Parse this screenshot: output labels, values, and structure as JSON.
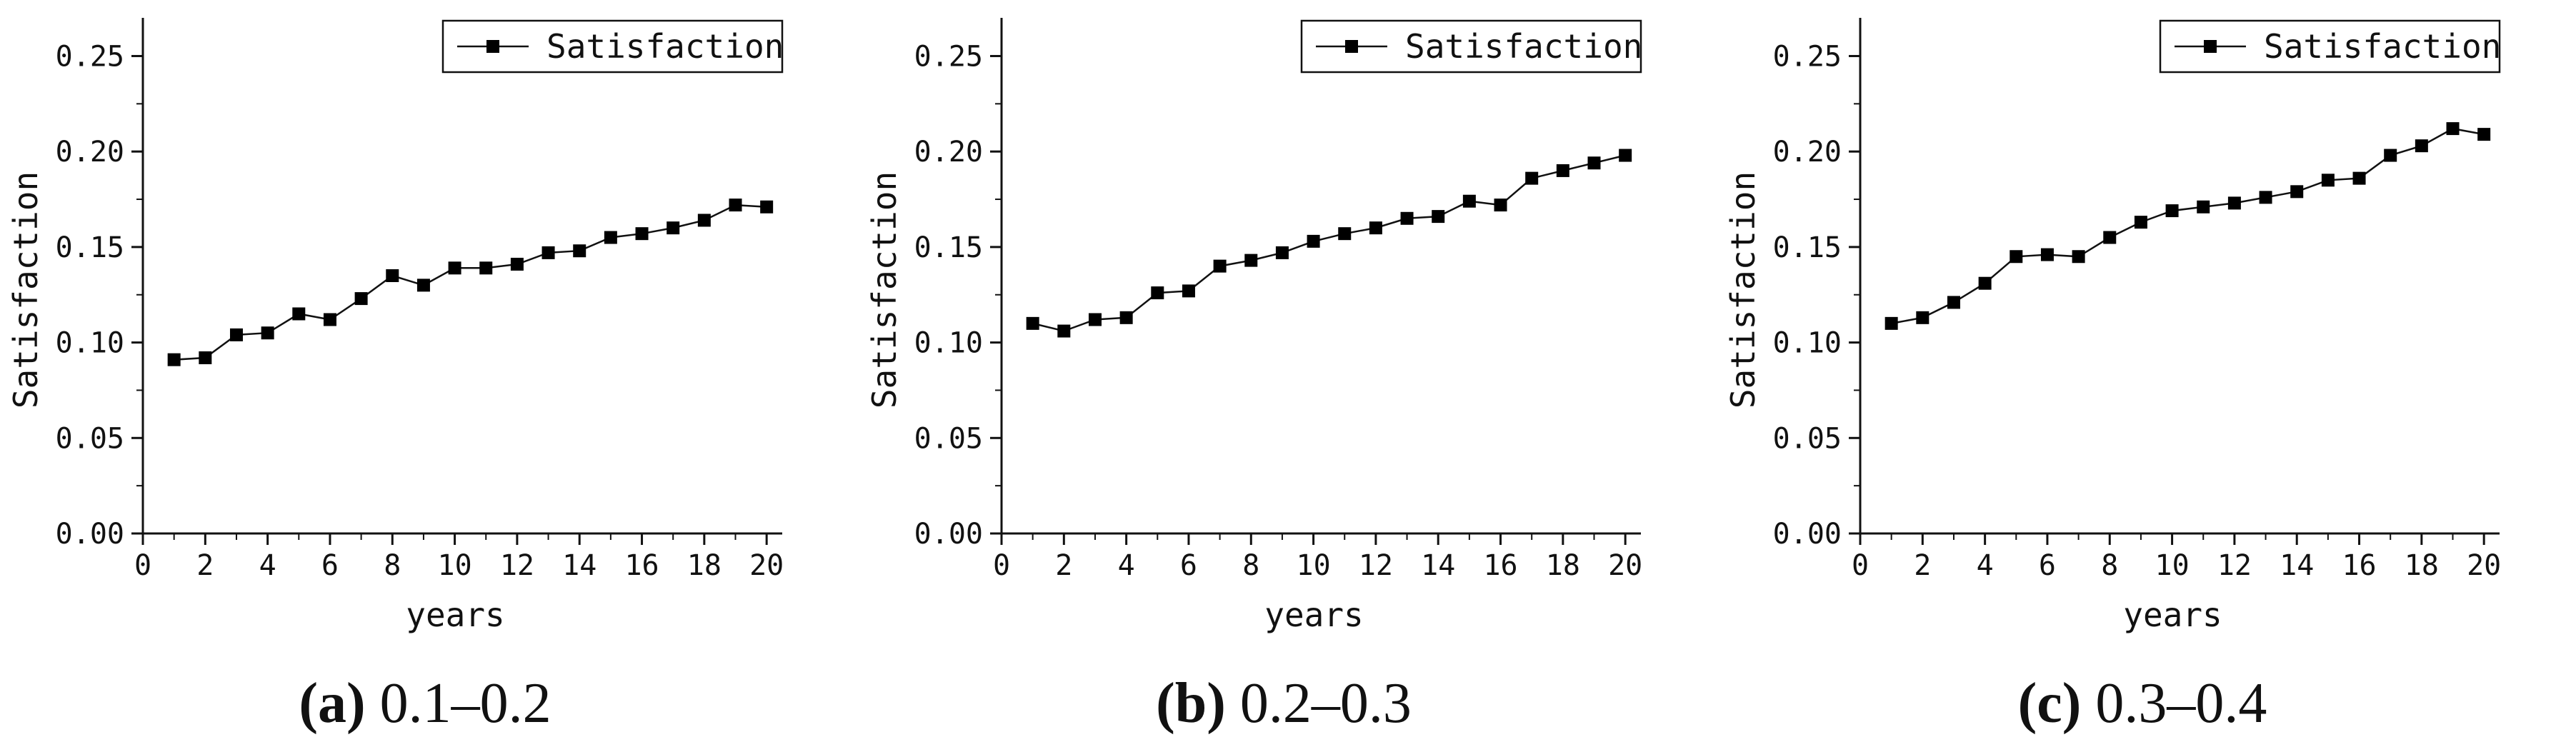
{
  "chart_data": [
    {
      "type": "line",
      "panel_label": "(a)",
      "caption": "0.1–0.2",
      "xlabel": "years",
      "ylabel": "Satisfaction",
      "xlim": [
        0,
        20.5
      ],
      "ylim": [
        0,
        0.27
      ],
      "xticks": [
        0,
        2,
        4,
        6,
        8,
        10,
        12,
        14,
        16,
        18,
        20
      ],
      "yticks": [
        0.0,
        0.05,
        0.1,
        0.15,
        0.2,
        0.25
      ],
      "ytick_labels": [
        "0.00",
        "0.05",
        "0.10",
        "0.15",
        "0.20",
        "0.25"
      ],
      "legend": "top-right",
      "grid": false,
      "series": [
        {
          "name": "Satisfaction",
          "x": [
            1,
            2,
            3,
            4,
            5,
            6,
            7,
            8,
            9,
            10,
            11,
            12,
            13,
            14,
            15,
            16,
            17,
            18,
            19,
            20
          ],
          "values": [
            0.091,
            0.092,
            0.104,
            0.105,
            0.115,
            0.112,
            0.123,
            0.135,
            0.13,
            0.139,
            0.139,
            0.141,
            0.147,
            0.148,
            0.155,
            0.157,
            0.16,
            0.164,
            0.172,
            0.171
          ]
        }
      ]
    },
    {
      "type": "line",
      "panel_label": "(b)",
      "caption": "0.2–0.3",
      "xlabel": "years",
      "ylabel": "Satisfaction",
      "xlim": [
        0,
        20.5
      ],
      "ylim": [
        0,
        0.27
      ],
      "xticks": [
        0,
        2,
        4,
        6,
        8,
        10,
        12,
        14,
        16,
        18,
        20
      ],
      "yticks": [
        0.0,
        0.05,
        0.1,
        0.15,
        0.2,
        0.25
      ],
      "ytick_labels": [
        "0.00",
        "0.05",
        "0.10",
        "0.15",
        "0.20",
        "0.25"
      ],
      "legend": "top-right",
      "grid": false,
      "series": [
        {
          "name": "Satisfaction",
          "x": [
            1,
            2,
            3,
            4,
            5,
            6,
            7,
            8,
            9,
            10,
            11,
            12,
            13,
            14,
            15,
            16,
            17,
            18,
            19,
            20
          ],
          "values": [
            0.11,
            0.106,
            0.112,
            0.113,
            0.126,
            0.127,
            0.14,
            0.143,
            0.147,
            0.153,
            0.157,
            0.16,
            0.165,
            0.166,
            0.174,
            0.172,
            0.186,
            0.19,
            0.194,
            0.198
          ]
        }
      ]
    },
    {
      "type": "line",
      "panel_label": "(c)",
      "caption": "0.3–0.4",
      "xlabel": "years",
      "ylabel": "Satisfaction",
      "xlim": [
        0,
        20.5
      ],
      "ylim": [
        0,
        0.27
      ],
      "xticks": [
        0,
        2,
        4,
        6,
        8,
        10,
        12,
        14,
        16,
        18,
        20
      ],
      "yticks": [
        0.0,
        0.05,
        0.1,
        0.15,
        0.2,
        0.25
      ],
      "ytick_labels": [
        "0.00",
        "0.05",
        "0.10",
        "0.15",
        "0.20",
        "0.25"
      ],
      "legend": "top-right",
      "grid": false,
      "series": [
        {
          "name": "Satisfaction",
          "x": [
            1,
            2,
            3,
            4,
            5,
            6,
            7,
            8,
            9,
            10,
            11,
            12,
            13,
            14,
            15,
            16,
            17,
            18,
            19,
            20
          ],
          "values": [
            0.11,
            0.113,
            0.121,
            0.131,
            0.145,
            0.146,
            0.145,
            0.155,
            0.163,
            0.169,
            0.171,
            0.173,
            0.176,
            0.179,
            0.185,
            0.186,
            0.198,
            0.203,
            0.212,
            0.209
          ]
        }
      ]
    }
  ]
}
